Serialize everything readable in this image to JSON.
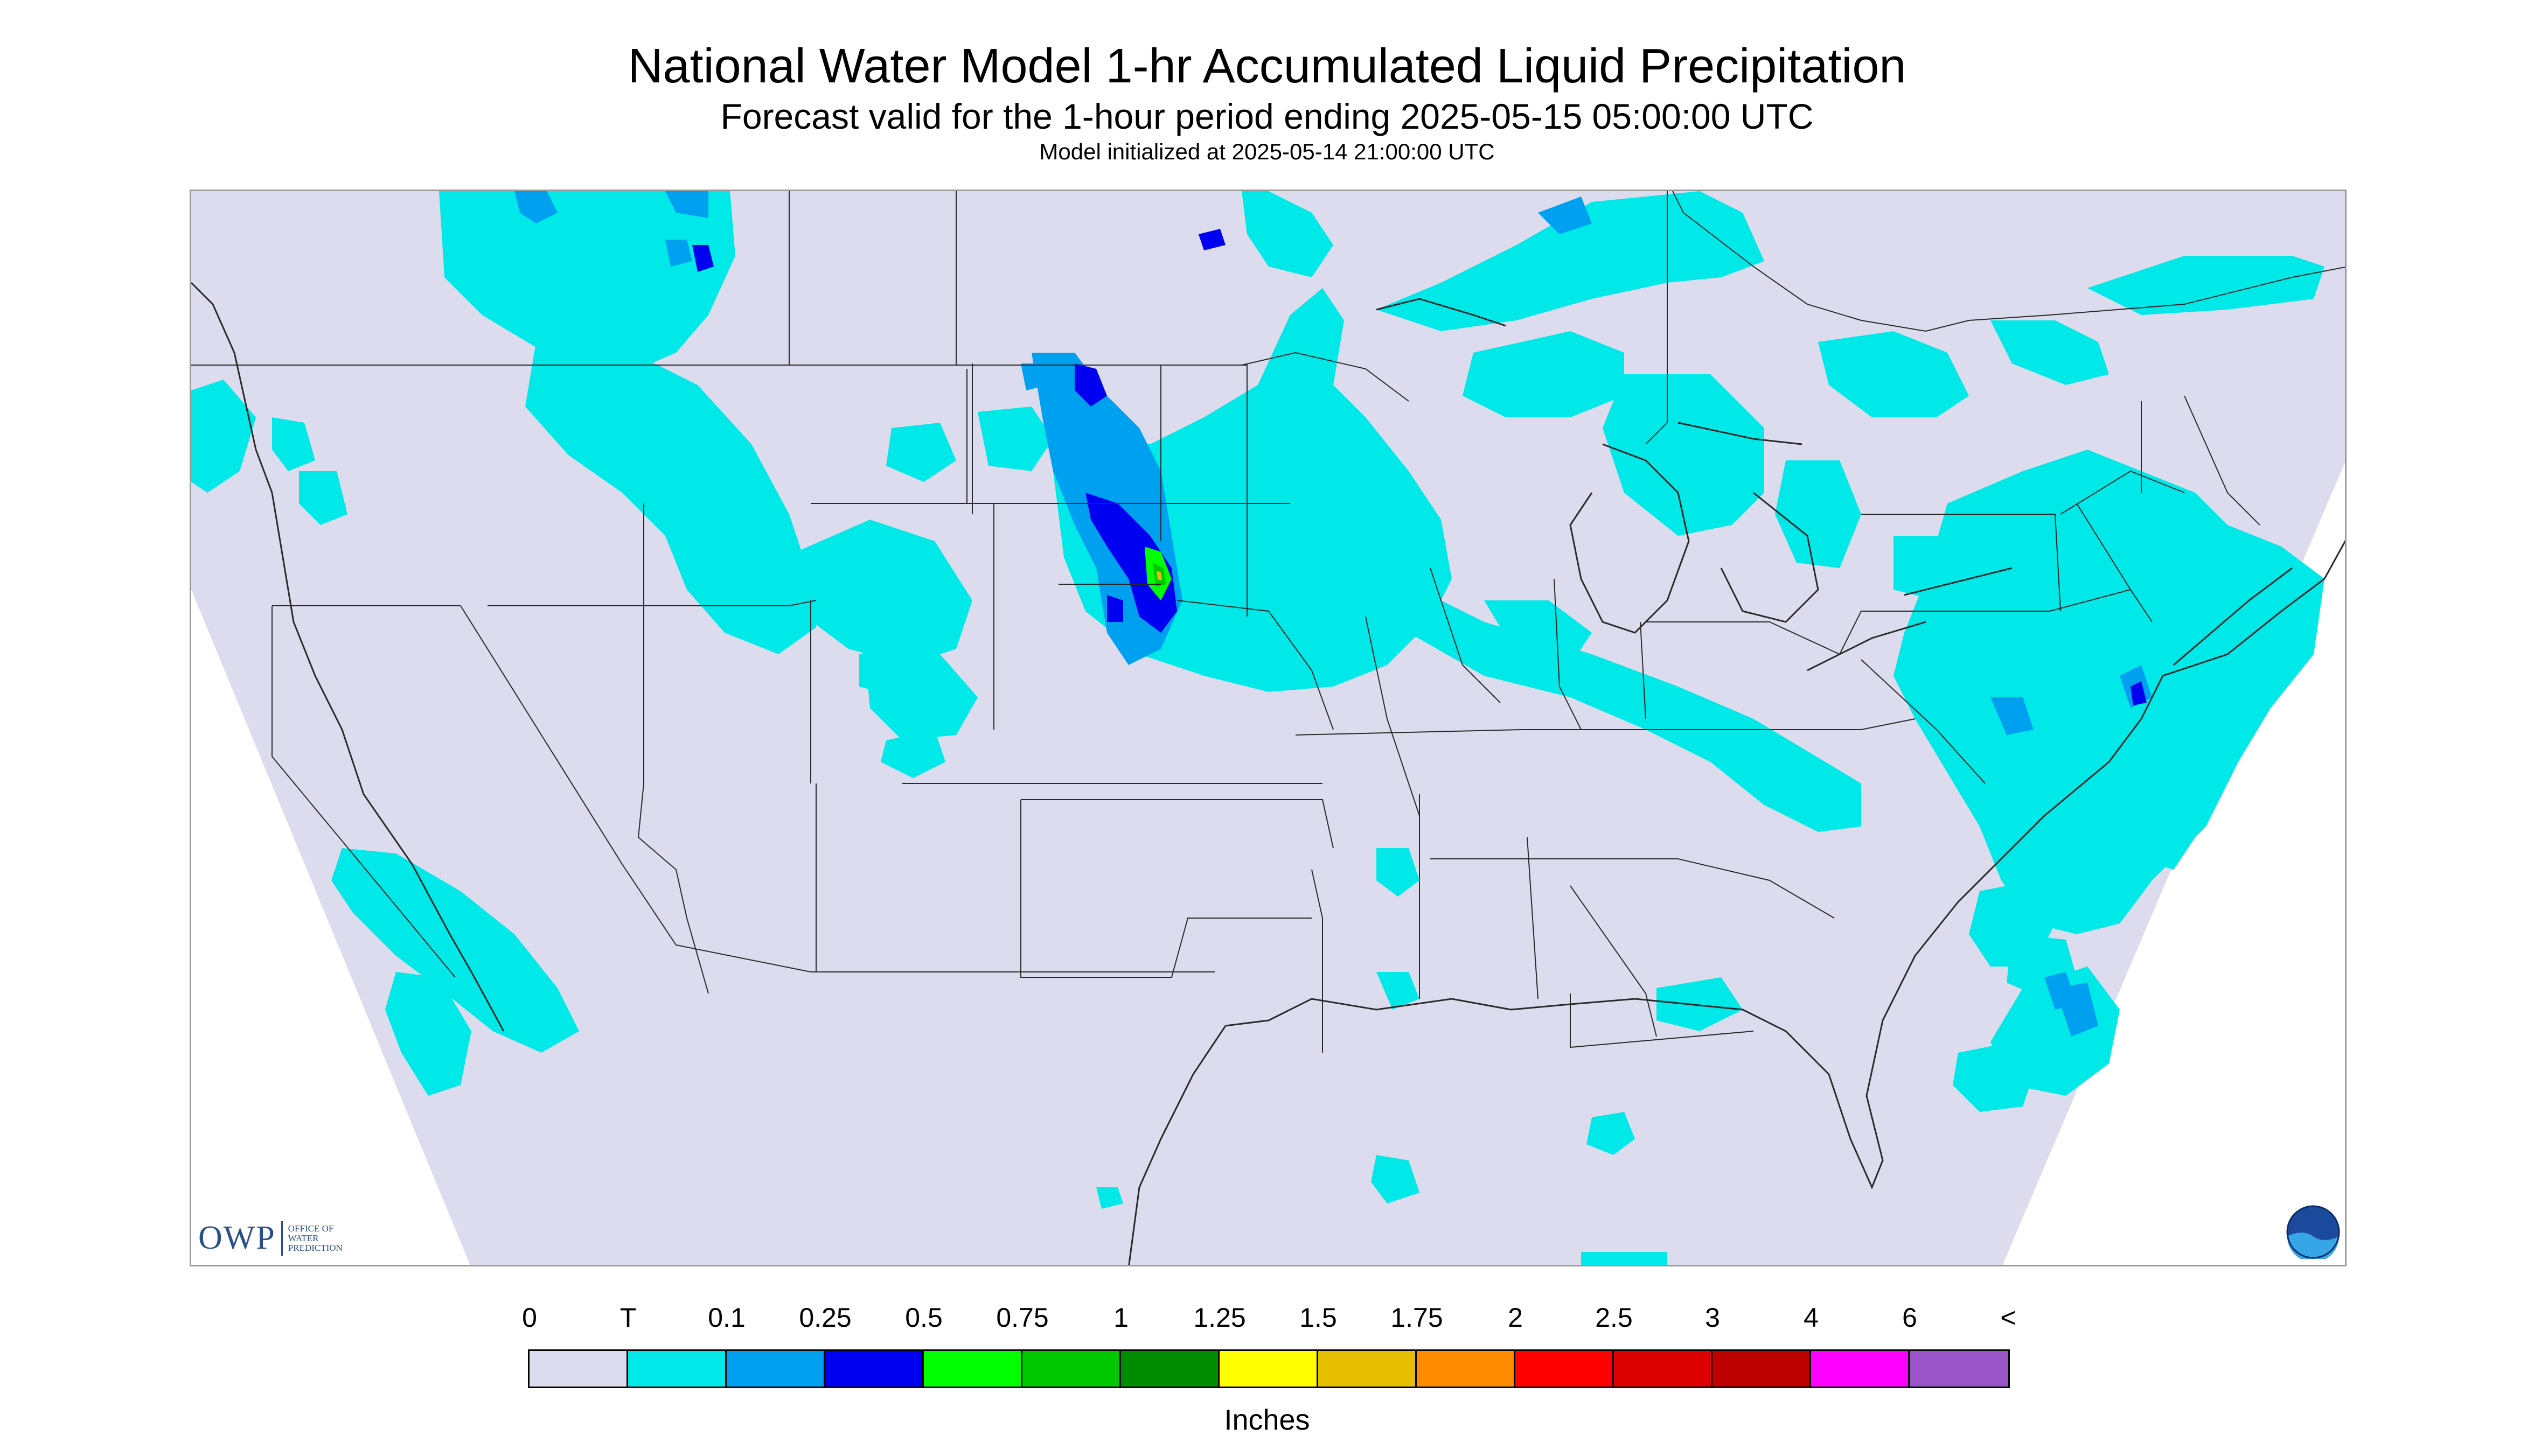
{
  "title": "National Water Model 1-hr Accumulated Liquid Precipitation",
  "subtitle": "Forecast valid for the 1-hour period ending 2025-05-15 05:00:00 UTC",
  "init_text": "Model initialized at 2025-05-14 21:00:00 UTC",
  "colors": {
    "background": "#ffffff",
    "no_data": "#ffffff",
    "zero": "#dcdcee",
    "boundary": "#2a2a2a"
  },
  "legend": {
    "ticks": [
      "0",
      "T",
      "0.1",
      "0.25",
      "0.5",
      "0.75",
      "1",
      "1.25",
      "1.5",
      "1.75",
      "2",
      "2.5",
      "3",
      "4",
      "6",
      "<"
    ],
    "colors": [
      "#dcdcee",
      "#00e8e8",
      "#00a0f0",
      "#0000f0",
      "#00ff00",
      "#00c800",
      "#008c00",
      "#ffff00",
      "#e6be00",
      "#ff8c00",
      "#ff0000",
      "#dc0000",
      "#bd0000",
      "#ff00ff",
      "#9955c8"
    ],
    "units": "Inches"
  },
  "logos": {
    "owp_mark": "OWP",
    "owp_text": [
      "OFFICE OF",
      "WATER",
      "PREDICTION"
    ],
    "noaa": "NOAA"
  }
}
